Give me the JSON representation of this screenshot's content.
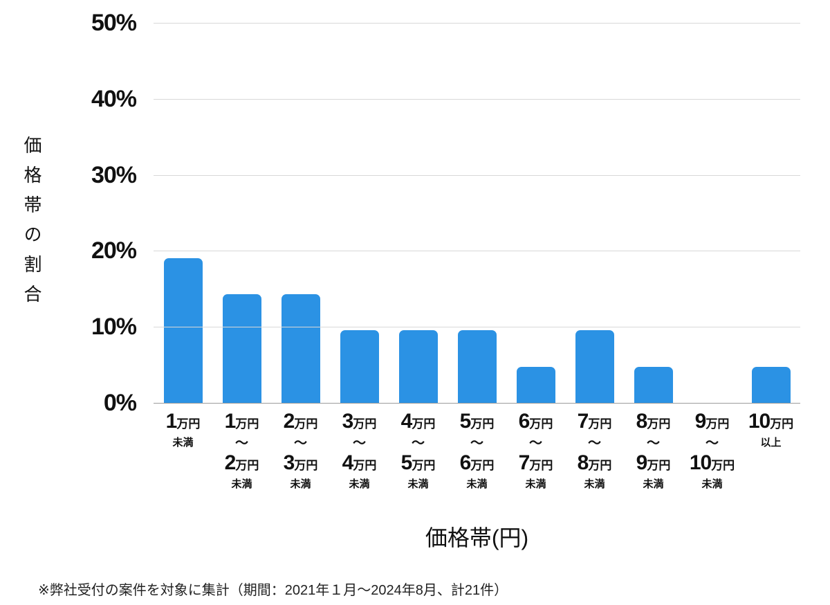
{
  "chart_data": {
    "type": "bar",
    "title": "",
    "xlabel": "価格帯(円)",
    "ylabel": "価格帯の割合",
    "ylim": [
      0,
      50
    ],
    "yticks": [
      "50%",
      "40%",
      "30%",
      "20%",
      "10%",
      "0%"
    ],
    "grid": true,
    "legend": "none",
    "bar_color": "#2b92e4",
    "grid_color": "#d8d8d8",
    "axis_color": "#9b9b9b",
    "values": [
      19.05,
      14.29,
      14.29,
      9.52,
      9.52,
      9.52,
      4.76,
      9.52,
      4.76,
      0,
      4.76
    ],
    "categories": [
      {
        "name": "1万円未満",
        "lines": [
          [
            {
              "text": "1",
              "cls": "num"
            },
            {
              "text": "万円",
              "cls": "unit"
            }
          ],
          [
            {
              "text": "未満",
              "cls": "small"
            }
          ]
        ]
      },
      {
        "name": "1万円〜2万円未満",
        "lines": [
          [
            {
              "text": "1",
              "cls": "num"
            },
            {
              "text": "万円",
              "cls": "unit"
            }
          ],
          [
            {
              "text": "〜",
              "cls": "tilde"
            }
          ],
          [
            {
              "text": "2",
              "cls": "num"
            },
            {
              "text": "万円",
              "cls": "unit"
            }
          ],
          [
            {
              "text": "未満",
              "cls": "small"
            }
          ]
        ]
      },
      {
        "name": "2万円〜3万円未満",
        "lines": [
          [
            {
              "text": "2",
              "cls": "num"
            },
            {
              "text": "万円",
              "cls": "unit"
            }
          ],
          [
            {
              "text": "〜",
              "cls": "tilde"
            }
          ],
          [
            {
              "text": "3",
              "cls": "num"
            },
            {
              "text": "万円",
              "cls": "unit"
            }
          ],
          [
            {
              "text": "未満",
              "cls": "small"
            }
          ]
        ]
      },
      {
        "name": "3万円〜4万円未満",
        "lines": [
          [
            {
              "text": "3",
              "cls": "num"
            },
            {
              "text": "万円",
              "cls": "unit"
            }
          ],
          [
            {
              "text": "〜",
              "cls": "tilde"
            }
          ],
          [
            {
              "text": "4",
              "cls": "num"
            },
            {
              "text": "万円",
              "cls": "unit"
            }
          ],
          [
            {
              "text": "未満",
              "cls": "small"
            }
          ]
        ]
      },
      {
        "name": "4万円〜5万円未満",
        "lines": [
          [
            {
              "text": "4",
              "cls": "num"
            },
            {
              "text": "万円",
              "cls": "unit"
            }
          ],
          [
            {
              "text": "〜",
              "cls": "tilde"
            }
          ],
          [
            {
              "text": "5",
              "cls": "num"
            },
            {
              "text": "万円",
              "cls": "unit"
            }
          ],
          [
            {
              "text": "未満",
              "cls": "small"
            }
          ]
        ]
      },
      {
        "name": "5万円〜6万円未満",
        "lines": [
          [
            {
              "text": "5",
              "cls": "num"
            },
            {
              "text": "万円",
              "cls": "unit"
            }
          ],
          [
            {
              "text": "〜",
              "cls": "tilde"
            }
          ],
          [
            {
              "text": "6",
              "cls": "num"
            },
            {
              "text": "万円",
              "cls": "unit"
            }
          ],
          [
            {
              "text": "未満",
              "cls": "small"
            }
          ]
        ]
      },
      {
        "name": "6万円〜7万円未満",
        "lines": [
          [
            {
              "text": "6",
              "cls": "num"
            },
            {
              "text": "万円",
              "cls": "unit"
            }
          ],
          [
            {
              "text": "〜",
              "cls": "tilde"
            }
          ],
          [
            {
              "text": "7",
              "cls": "num"
            },
            {
              "text": "万円",
              "cls": "unit"
            }
          ],
          [
            {
              "text": "未満",
              "cls": "small"
            }
          ]
        ]
      },
      {
        "name": "7万円〜8万円未満",
        "lines": [
          [
            {
              "text": "7",
              "cls": "num"
            },
            {
              "text": "万円",
              "cls": "unit"
            }
          ],
          [
            {
              "text": "〜",
              "cls": "tilde"
            }
          ],
          [
            {
              "text": "8",
              "cls": "num"
            },
            {
              "text": "万円",
              "cls": "unit"
            }
          ],
          [
            {
              "text": "未満",
              "cls": "small"
            }
          ]
        ]
      },
      {
        "name": "8万円〜9万円未満",
        "lines": [
          [
            {
              "text": "8",
              "cls": "num"
            },
            {
              "text": "万円",
              "cls": "unit"
            }
          ],
          [
            {
              "text": "〜",
              "cls": "tilde"
            }
          ],
          [
            {
              "text": "9",
              "cls": "num"
            },
            {
              "text": "万円",
              "cls": "unit"
            }
          ],
          [
            {
              "text": "未満",
              "cls": "small"
            }
          ]
        ]
      },
      {
        "name": "9万円〜10万円未満",
        "lines": [
          [
            {
              "text": "9",
              "cls": "num"
            },
            {
              "text": "万円",
              "cls": "unit"
            }
          ],
          [
            {
              "text": "〜",
              "cls": "tilde"
            }
          ],
          [
            {
              "text": "10",
              "cls": "num"
            },
            {
              "text": "万円",
              "cls": "unit"
            }
          ],
          [
            {
              "text": "未満",
              "cls": "small"
            }
          ]
        ]
      },
      {
        "name": "10万円以上",
        "lines": [
          [
            {
              "text": "10",
              "cls": "num"
            },
            {
              "text": "万円",
              "cls": "unit"
            }
          ],
          [
            {
              "text": "以上",
              "cls": "small"
            }
          ]
        ]
      }
    ]
  },
  "footnote": "※弊社受付の案件を対象に集計（期間：2021年１月～2024年8月、計21件）"
}
